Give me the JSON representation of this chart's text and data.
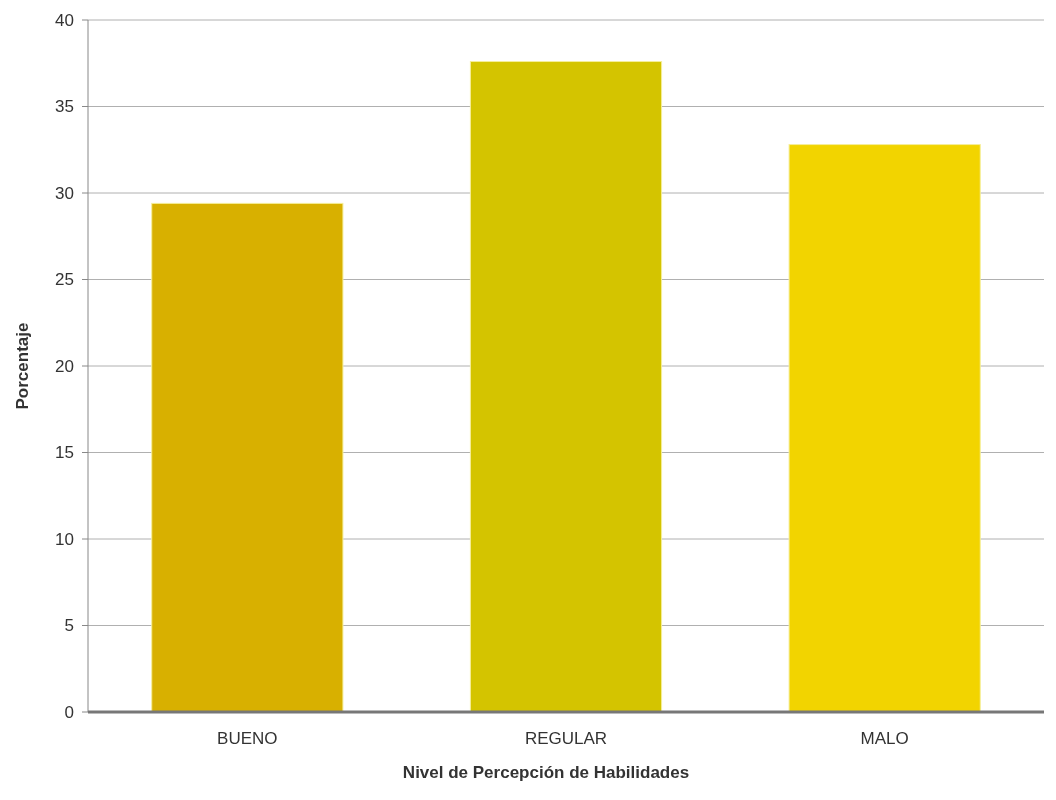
{
  "chart_data": {
    "type": "bar",
    "xlabel": "Nivel de Percepción de Habilidades",
    "ylabel": "Porcentaje",
    "categories": [
      "BUENO",
      "REGULAR",
      "MALO"
    ],
    "values": [
      29.4,
      37.6,
      32.8
    ],
    "colors": [
      "#d8b000",
      "#d4c400",
      "#f2d400"
    ],
    "ylim": [
      0,
      40
    ],
    "yticks": [
      0,
      5,
      10,
      15,
      20,
      25,
      30,
      35,
      40
    ],
    "grid": "y"
  }
}
